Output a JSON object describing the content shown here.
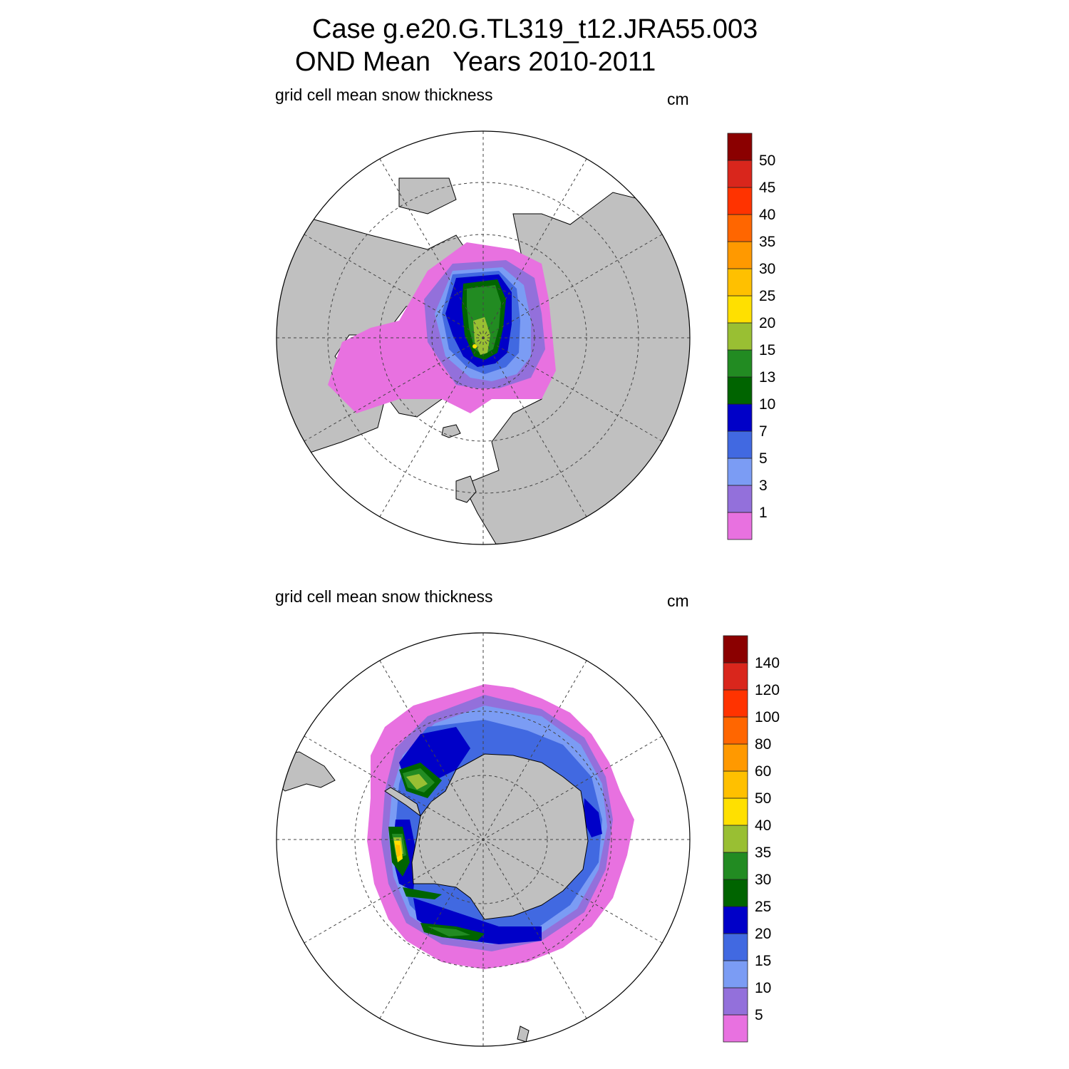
{
  "title": {
    "line1": "Case g.e20.G.TL319_t12.JRA55.003",
    "line2": "OND Mean   Years 2010-2011"
  },
  "panels": [
    {
      "id": "north",
      "variable_label": "grid cell mean snow thickness",
      "units": "cm",
      "hemisphere": "Arctic",
      "colorbar": {
        "labels": [
          "1",
          "3",
          "5",
          "7",
          "10",
          "13",
          "15",
          "20",
          "25",
          "30",
          "35",
          "40",
          "45",
          "50"
        ],
        "colors": [
          "#e871e0",
          "#9370db",
          "#7b9cf4",
          "#4169e1",
          "#0000c8",
          "#006400",
          "#228b22",
          "#99bf33",
          "#ffe000",
          "#ffc000",
          "#ff9900",
          "#ff6600",
          "#ff3300",
          "#d9261c",
          "#8b0000"
        ]
      }
    },
    {
      "id": "south",
      "variable_label": "grid cell mean snow thickness",
      "units": "cm",
      "hemisphere": "Antarctic",
      "colorbar": {
        "labels": [
          "5",
          "10",
          "15",
          "20",
          "25",
          "30",
          "35",
          "40",
          "50",
          "60",
          "80",
          "100",
          "120",
          "140"
        ],
        "colors": [
          "#e871e0",
          "#9370db",
          "#7b9cf4",
          "#4169e1",
          "#0000c8",
          "#006400",
          "#228b22",
          "#99bf33",
          "#ffe000",
          "#ffc000",
          "#ff9900",
          "#ff6600",
          "#ff3300",
          "#d9261c",
          "#8b0000"
        ]
      }
    }
  ],
  "colors": {
    "land": "#c0c0c0",
    "ocean": "#ffffff",
    "grid": "#444444"
  }
}
